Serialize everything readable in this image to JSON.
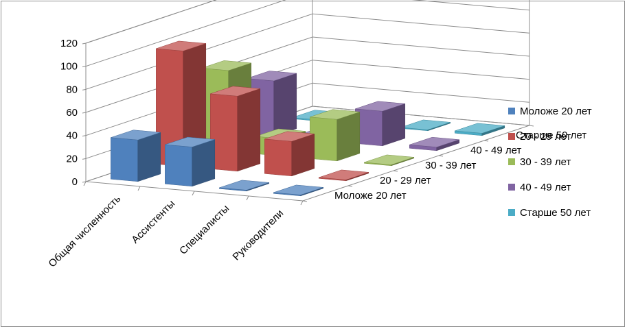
{
  "chart_data": {
    "type": "bar",
    "variant": "3d-column",
    "title": "",
    "xlabel": "",
    "ylabel": "",
    "categories": [
      "Общая численность",
      "Ассистенты",
      "Специалисты",
      "Руководители"
    ],
    "series_axis_labels": [
      "Моложе 20 лет",
      "20 - 29 лет",
      "30 - 39 лет",
      "40 - 49 лет",
      "Старше 50 лет"
    ],
    "series": [
      {
        "name": "Моложе 20 лет",
        "color": "#4f81bd",
        "values": [
          36,
          34,
          0,
          0
        ]
      },
      {
        "name": "20 - 29 лет",
        "color": "#c0504d",
        "values": [
          100,
          65,
          30,
          0
        ]
      },
      {
        "name": "30 - 39 лет",
        "color": "#9bbb59",
        "values": [
          70,
          15,
          36,
          0
        ]
      },
      {
        "name": "40 - 49 лет",
        "color": "#8064a2",
        "values": [
          48,
          4,
          30,
          3
        ]
      },
      {
        "name": "Старше 50 лет",
        "color": "#4bacc6",
        "values": [
          1,
          0,
          0,
          2
        ]
      }
    ],
    "ylim": [
      0,
      120
    ],
    "yticks": [
      0,
      20,
      40,
      60,
      80,
      100,
      120
    ],
    "grid": true,
    "legend_position": "right"
  }
}
